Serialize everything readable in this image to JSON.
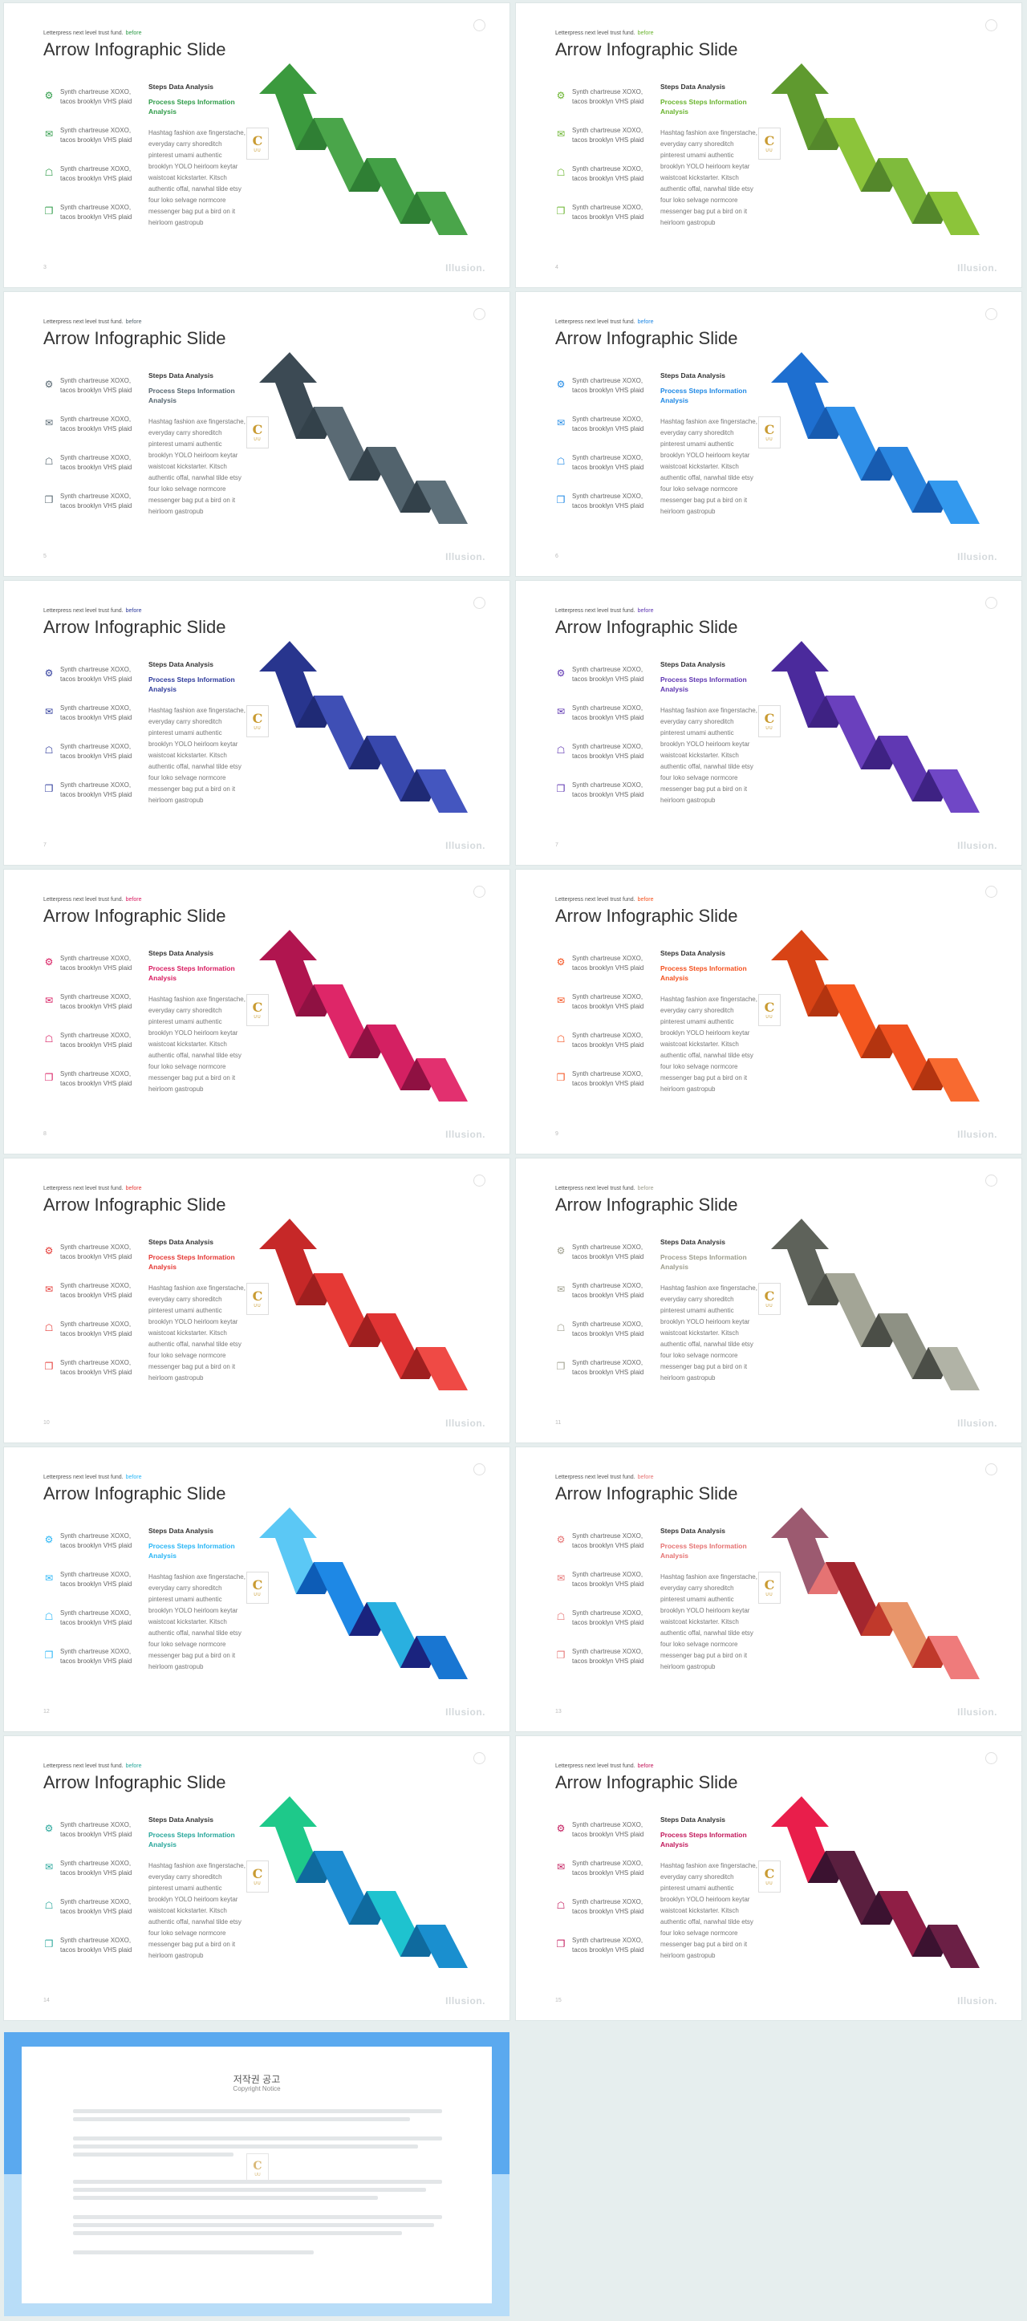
{
  "common": {
    "tagline": "Letterpress next level trust fund.",
    "tagline_highlight": "before",
    "title": "Arrow Infographic Slide",
    "items": [
      "Synth chartreuse XOXO, tacos brooklyn VHS plaid",
      "Synth chartreuse XOXO, tacos brooklyn VHS plaid",
      "Synth chartreuse XOXO, tacos brooklyn VHS plaid",
      "Synth chartreuse XOXO, tacos brooklyn VHS plaid"
    ],
    "steps_heading": "Steps Data Analysis",
    "process_heading": "Process Steps Information Analysis",
    "body": "Hashtag fashion axe fingerstache, everyday carry shoreditch pinterest umami authentic brooklyn YOLO heirloom keytar waistcoat kickstarter. Kitsch authentic offal, narwhal tilde etsy four loko selvage normcore messenger bag put a bird on it heirloom gastropub",
    "brand": "Illusion.",
    "logo_letter": "C",
    "logo_sub": "UU"
  },
  "slides": [
    {
      "page": "3",
      "accent": "#2e9b48",
      "segments": [
        "#3b9a3e",
        "#4aa54a",
        "#2f7f34",
        "#43a046",
        "#2f7f34",
        "#4aa54a"
      ]
    },
    {
      "page": "4",
      "accent": "#6ab42e",
      "segments": [
        "#5f9a2f",
        "#8cc43a",
        "#54872b",
        "#7fbb3c",
        "#54872b",
        "#8cc43a"
      ]
    },
    {
      "page": "5",
      "accent": "#55656f",
      "segments": [
        "#3c4a54",
        "#5a6a74",
        "#33414a",
        "#52636d",
        "#33414a",
        "#5e707a"
      ]
    },
    {
      "page": "6",
      "accent": "#1e88e5",
      "segments": [
        "#1e6fd0",
        "#2f8fe8",
        "#175bb0",
        "#2a86e0",
        "#175bb0",
        "#3399ee"
      ]
    },
    {
      "page": "7",
      "accent": "#2e3b9c",
      "segments": [
        "#28358e",
        "#3f4fb5",
        "#1f2a75",
        "#3848ad",
        "#1f2a75",
        "#4456bf"
      ]
    },
    {
      "page": "7",
      "accent": "#5e35b1",
      "segments": [
        "#4b2a9c",
        "#6a40bd",
        "#3e2283",
        "#6038b3",
        "#3e2283",
        "#7047c6"
      ]
    },
    {
      "page": "8",
      "accent": "#d81b60",
      "segments": [
        "#b0154f",
        "#de2668",
        "#8f1142",
        "#d42062",
        "#8f1142",
        "#e2306f"
      ]
    },
    {
      "page": "9",
      "accent": "#f4511e",
      "segments": [
        "#d84315",
        "#f4571f",
        "#b33410",
        "#ef5120",
        "#b33410",
        "#f86a30"
      ]
    },
    {
      "page": "10",
      "accent": "#e53935",
      "segments": [
        "#c62828",
        "#e53935",
        "#9f1f1f",
        "#e03434",
        "#9f1f1f",
        "#ef4a45"
      ]
    },
    {
      "page": "11",
      "accent": "#9e9e8e",
      "segments": [
        "#5e625a",
        "#a3a596",
        "#4b4e47",
        "#8e9184",
        "#4b4e47",
        "#b1b3a6"
      ]
    },
    {
      "page": "12",
      "accent": "#29b6f6",
      "segments": [
        "#5bc8f5",
        "#1e88e5",
        "#0d5cb6",
        "#29b0e0",
        "#1a237e",
        "#1976d2"
      ]
    },
    {
      "page": "13",
      "accent": "#e57373",
      "segments": [
        "#9c5a70",
        "#a3262f",
        "#e57373",
        "#e8956a",
        "#c0392b",
        "#ef7b7b"
      ]
    },
    {
      "page": "14",
      "accent": "#26a69a",
      "segments": [
        "#1ec98a",
        "#1c8bd0",
        "#0f6a9e",
        "#1ec3cf",
        "#0f6a9e",
        "#1a8fcf"
      ]
    },
    {
      "page": "15",
      "accent": "#c2185b",
      "segments": [
        "#e91e4b",
        "#5a1f3f",
        "#3b1230",
        "#8f1e45",
        "#3b1230",
        "#6b1f45"
      ]
    }
  ],
  "notice": {
    "title": "저작권 공고",
    "subtitle": "Copyright Notice"
  }
}
